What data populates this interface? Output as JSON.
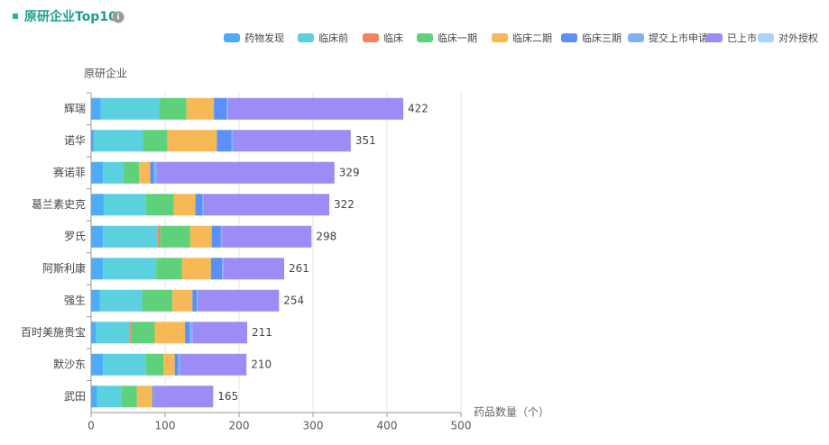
{
  "chart_data": {
    "type": "stacked-bar-horizontal",
    "title": "原研企业Top10",
    "y_axis_label": "原研企业",
    "x_axis_label": "药品数量（个）",
    "categories": [
      "辉瑞",
      "诺华",
      "赛诺菲",
      "葛兰素史克",
      "罗氏",
      "阿斯利康",
      "强生",
      "百时美施贵宝",
      "默沙东",
      "武田"
    ],
    "series": [
      {
        "name": "药物发现",
        "color": "#4dabf7",
        "values": [
          13,
          4,
          16,
          17,
          16,
          16,
          12,
          7,
          16,
          8
        ]
      },
      {
        "name": "临床前",
        "color": "#5bd1e0",
        "values": [
          79,
          66,
          28,
          57,
          74,
          72,
          57,
          45,
          58,
          33
        ]
      },
      {
        "name": "临床",
        "color": "#f5845c",
        "values": [
          0,
          0,
          0,
          0,
          3,
          0,
          0,
          2,
          0,
          0
        ]
      },
      {
        "name": "临床一期",
        "color": "#5ed17a",
        "values": [
          37,
          33,
          21,
          38,
          41,
          35,
          41,
          32,
          24,
          21
        ]
      },
      {
        "name": "临床二期",
        "color": "#f7b955",
        "values": [
          37,
          67,
          15,
          29,
          29,
          39,
          27,
          41,
          15,
          21
        ]
      },
      {
        "name": "临床三期",
        "color": "#5b8ff9",
        "values": [
          17,
          20,
          5,
          9,
          12,
          15,
          6,
          6,
          5,
          2
        ]
      },
      {
        "name": "提交上市申请",
        "color": "#7fb2f5",
        "values": [
          2,
          2,
          4,
          2,
          2,
          2,
          2,
          4,
          2,
          1
        ]
      },
      {
        "name": "已上市",
        "color": "#9c8cf5",
        "values": [
          237,
          159,
          240,
          170,
          121,
          82,
          109,
          74,
          90,
          79
        ]
      },
      {
        "name": "对外授权",
        "color": "#a8d4ff",
        "values": [
          0,
          0,
          0,
          0,
          0,
          0,
          0,
          0,
          0,
          0
        ]
      }
    ],
    "totals": [
      422,
      351,
      329,
      322,
      298,
      261,
      254,
      211,
      210,
      165
    ],
    "xlim": [
      0,
      500
    ],
    "xticks": [
      0,
      100,
      200,
      300,
      400,
      500
    ],
    "grid": true
  }
}
